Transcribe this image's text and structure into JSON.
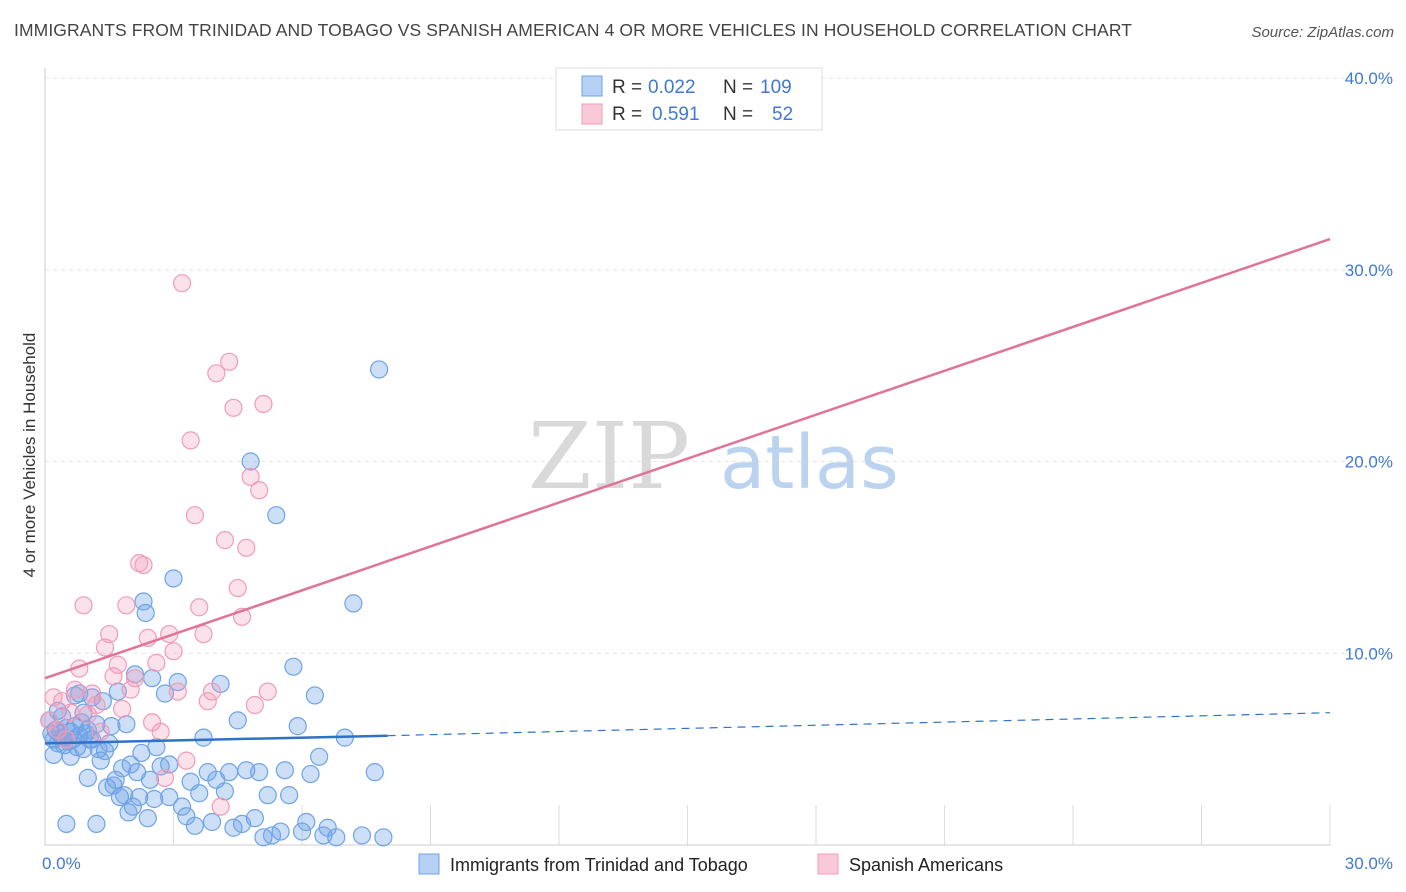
{
  "title": "IMMIGRANTS FROM TRINIDAD AND TOBAGO VS SPANISH AMERICAN 4 OR MORE VEHICLES IN HOUSEHOLD CORRELATION CHART",
  "source": "Source: ZipAtlas.com",
  "watermark": {
    "zip": "ZIP",
    "atlas": "atlas"
  },
  "stats": [
    {
      "r_label": "R =",
      "r_value": "0.022",
      "n_label": "N =",
      "n_value": "109"
    },
    {
      "r_label": "R =",
      "r_value": "0.591",
      "n_label": "N =",
      "n_value": "52"
    }
  ],
  "colors": {
    "blue": "#6fa3e6",
    "blue_line": "#2f72c9",
    "pink": "#f19bb8",
    "pink_line": "#e0739a",
    "tick": "#3f7ad0"
  },
  "chart_data": {
    "type": "scatter",
    "title": "IMMIGRANTS FROM TRINIDAD AND TOBAGO VS SPANISH AMERICAN 4 OR MORE VEHICLES IN HOUSEHOLD CORRELATION CHART",
    "xlabel": "",
    "ylabel": "4 or more Vehicles in Household",
    "xlim": [
      0,
      30
    ],
    "ylim": [
      0,
      40
    ],
    "x_tick_labels": [
      "0.0%",
      "30.0%"
    ],
    "y_ticks": [
      10,
      20,
      30,
      40
    ],
    "y_tick_labels": [
      "10.0%",
      "20.0%",
      "30.0%",
      "40.0%"
    ],
    "grid": true,
    "legend_position": "bottom-center",
    "series": [
      {
        "name": "Immigrants from Trinidad and Tobago",
        "color": "#6fa3e6",
        "R": 0.022,
        "N": 109,
        "trend": {
          "x": [
            0,
            8
          ],
          "y": [
            5.3,
            5.7
          ],
          "extend_x": 30,
          "extend_y": 6.9
        },
        "points": [
          [
            0.1,
            6.5
          ],
          [
            0.15,
            5.8
          ],
          [
            0.2,
            5.5
          ],
          [
            0.25,
            6.0
          ],
          [
            0.3,
            5.3
          ],
          [
            0.35,
            5.8
          ],
          [
            0.4,
            5.6
          ],
          [
            0.45,
            5.2
          ],
          [
            0.5,
            6.1
          ],
          [
            0.55,
            5.4
          ],
          [
            0.6,
            5.9
          ],
          [
            0.65,
            5.5
          ],
          [
            0.7,
            6.2
          ],
          [
            0.75,
            5.1
          ],
          [
            0.8,
            5.7
          ],
          [
            0.85,
            6.4
          ],
          [
            0.9,
            5.0
          ],
          [
            0.95,
            5.8
          ],
          [
            1.0,
            6.0
          ],
          [
            1.05,
            5.5
          ],
          [
            0.2,
            4.7
          ],
          [
            0.3,
            7.0
          ],
          [
            0.4,
            6.7
          ],
          [
            0.6,
            4.6
          ],
          [
            0.7,
            7.8
          ],
          [
            0.8,
            7.9
          ],
          [
            0.9,
            6.9
          ],
          [
            1.0,
            3.5
          ],
          [
            1.1,
            7.7
          ],
          [
            1.2,
            6.3
          ],
          [
            1.25,
            5.0
          ],
          [
            1.3,
            4.4
          ],
          [
            1.35,
            7.5
          ],
          [
            1.4,
            4.9
          ],
          [
            1.45,
            3.0
          ],
          [
            1.5,
            5.3
          ],
          [
            1.55,
            6.2
          ],
          [
            1.6,
            3.1
          ],
          [
            1.65,
            3.4
          ],
          [
            1.7,
            8.0
          ],
          [
            1.75,
            2.5
          ],
          [
            1.8,
            4.0
          ],
          [
            1.85,
            2.6
          ],
          [
            1.9,
            6.3
          ],
          [
            1.95,
            1.7
          ],
          [
            2.0,
            4.2
          ],
          [
            2.05,
            2.0
          ],
          [
            2.1,
            8.9
          ],
          [
            2.15,
            3.8
          ],
          [
            2.2,
            2.5
          ],
          [
            2.25,
            4.8
          ],
          [
            2.3,
            12.7
          ],
          [
            2.35,
            12.1
          ],
          [
            2.4,
            1.4
          ],
          [
            2.45,
            3.4
          ],
          [
            2.5,
            8.7
          ],
          [
            2.55,
            2.4
          ],
          [
            2.6,
            5.1
          ],
          [
            2.7,
            4.1
          ],
          [
            2.8,
            7.9
          ],
          [
            2.9,
            2.5
          ],
          [
            3.0,
            13.9
          ],
          [
            3.1,
            8.5
          ],
          [
            3.2,
            2.0
          ],
          [
            3.3,
            1.5
          ],
          [
            3.4,
            3.3
          ],
          [
            3.5,
            1.0
          ],
          [
            3.6,
            2.7
          ],
          [
            3.7,
            5.6
          ],
          [
            3.8,
            3.8
          ],
          [
            3.9,
            1.2
          ],
          [
            4.0,
            3.4
          ],
          [
            4.1,
            8.4
          ],
          [
            4.2,
            2.8
          ],
          [
            4.3,
            3.8
          ],
          [
            4.4,
            0.9
          ],
          [
            4.5,
            6.5
          ],
          [
            4.6,
            1.1
          ],
          [
            4.7,
            3.9
          ],
          [
            4.8,
            20.0
          ],
          [
            4.9,
            1.4
          ],
          [
            5.0,
            3.8
          ],
          [
            5.1,
            0.4
          ],
          [
            5.2,
            2.6
          ],
          [
            5.3,
            0.5
          ],
          [
            5.4,
            17.2
          ],
          [
            5.5,
            0.7
          ],
          [
            5.6,
            3.9
          ],
          [
            5.7,
            2.6
          ],
          [
            5.8,
            9.3
          ],
          [
            5.9,
            6.2
          ],
          [
            6.0,
            0.7
          ],
          [
            6.1,
            1.2
          ],
          [
            6.2,
            3.7
          ],
          [
            6.3,
            7.8
          ],
          [
            6.4,
            4.6
          ],
          [
            6.5,
            0.5
          ],
          [
            6.6,
            0.9
          ],
          [
            6.8,
            0.4
          ],
          [
            7.0,
            5.6
          ],
          [
            7.2,
            12.6
          ],
          [
            7.4,
            0.5
          ],
          [
            7.7,
            3.8
          ],
          [
            7.8,
            24.8
          ],
          [
            7.9,
            0.4
          ],
          [
            0.5,
            1.1
          ],
          [
            1.2,
            1.1
          ],
          [
            1.1,
            5.5
          ],
          [
            2.9,
            4.2
          ]
        ]
      },
      {
        "name": "Spanish Americans",
        "color": "#f19bb8",
        "R": 0.591,
        "N": 52,
        "trend": {
          "x": [
            0,
            30
          ],
          "y": [
            8.7,
            31.6
          ]
        },
        "points": [
          [
            0.1,
            6.5
          ],
          [
            0.2,
            7.7
          ],
          [
            0.3,
            6.0
          ],
          [
            0.4,
            7.5
          ],
          [
            0.5,
            5.5
          ],
          [
            0.6,
            6.9
          ],
          [
            0.7,
            8.1
          ],
          [
            0.8,
            9.2
          ],
          [
            0.9,
            12.5
          ],
          [
            1.0,
            6.8
          ],
          [
            1.1,
            7.9
          ],
          [
            1.2,
            7.3
          ],
          [
            1.3,
            5.9
          ],
          [
            1.4,
            10.3
          ],
          [
            1.5,
            11.0
          ],
          [
            1.6,
            8.8
          ],
          [
            1.7,
            9.4
          ],
          [
            1.8,
            7.1
          ],
          [
            1.9,
            12.5
          ],
          [
            2.0,
            8.1
          ],
          [
            2.1,
            8.7
          ],
          [
            2.2,
            14.7
          ],
          [
            2.3,
            14.6
          ],
          [
            2.4,
            10.8
          ],
          [
            2.5,
            6.4
          ],
          [
            2.6,
            9.5
          ],
          [
            2.7,
            5.9
          ],
          [
            2.8,
            3.5
          ],
          [
            2.9,
            11.0
          ],
          [
            3.0,
            10.1
          ],
          [
            3.1,
            8.0
          ],
          [
            3.2,
            29.3
          ],
          [
            3.3,
            4.4
          ],
          [
            3.4,
            21.1
          ],
          [
            3.5,
            17.2
          ],
          [
            3.6,
            12.4
          ],
          [
            3.7,
            11.0
          ],
          [
            3.8,
            7.5
          ],
          [
            3.9,
            8.0
          ],
          [
            4.0,
            24.6
          ],
          [
            4.1,
            2.0
          ],
          [
            4.2,
            15.9
          ],
          [
            4.3,
            25.2
          ],
          [
            4.4,
            22.8
          ],
          [
            4.5,
            13.4
          ],
          [
            4.6,
            11.9
          ],
          [
            4.7,
            15.5
          ],
          [
            4.8,
            19.2
          ],
          [
            4.9,
            7.3
          ],
          [
            5.0,
            18.5
          ],
          [
            5.1,
            23.0
          ],
          [
            5.2,
            8.0
          ]
        ]
      }
    ]
  },
  "legend": [
    "Immigrants from Trinidad and Tobago",
    "Spanish Americans"
  ]
}
